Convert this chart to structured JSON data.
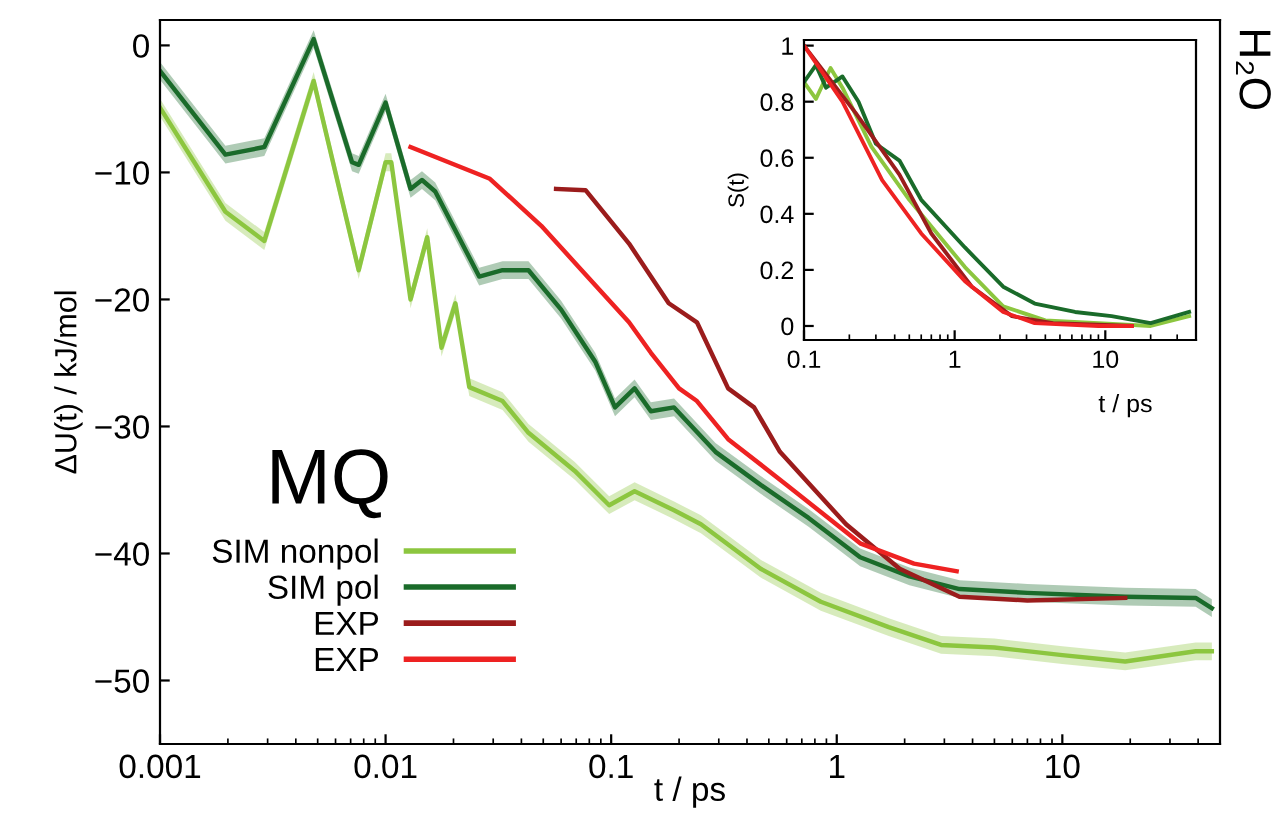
{
  "chart_data": [
    {
      "type": "line",
      "xlabel": "t / ps",
      "ylabel": "ΔU(t) / kJ/mol",
      "log": "x",
      "xlim": [
        0.001,
        50
      ],
      "ylim": [
        -55,
        2
      ],
      "xticks": [
        0.001,
        0.01,
        0.1,
        1,
        10
      ],
      "yticks": [
        {
          "value": -50,
          "label": "−50"
        },
        {
          "value": -40,
          "label": "−40"
        },
        {
          "value": -30,
          "label": "−30"
        },
        {
          "value": -20,
          "label": "−20"
        },
        {
          "value": -10,
          "label": "−10"
        },
        0
      ],
      "grid": false,
      "legend": "bottom left",
      "annotations": [
        "MQ",
        "H₂O"
      ],
      "series": [
        {
          "name": "SIM nonpol",
          "color": "#8cc63f",
          "x": [
            0.001,
            0.00195,
            0.0029,
            0.0048,
            0.0076,
            0.01,
            0.0106,
            0.0129,
            0.0153,
            0.0177,
            0.0204,
            0.0235,
            0.033,
            0.043,
            0.069,
            0.098,
            0.127,
            0.19,
            0.25,
            0.46,
            0.85,
            1.7,
            2.9,
            5,
            10,
            19,
            39,
            46
          ],
          "values": [
            -4.9,
            -13.1,
            -15.4,
            -2.8,
            -17.7,
            -9.2,
            -9.2,
            -20,
            -15.1,
            -23.8,
            -20.3,
            -26.9,
            -28,
            -30.5,
            -33.5,
            -36.2,
            -35.1,
            -36.6,
            -37.7,
            -41.2,
            -43.8,
            -45.8,
            -47.2,
            -47.4,
            -48,
            -48.5,
            -47.7,
            -47.7
          ],
          "lower": [
            -5.6,
            -13.8,
            -16.1,
            -3.5,
            -18.4,
            -9.9,
            -9.9,
            -20.7,
            -15.8,
            -24.5,
            -21,
            -27.6,
            -28.7,
            -31.2,
            -34.2,
            -36.9,
            -35.8,
            -37.3,
            -38.4,
            -41.9,
            -44.5,
            -46.5,
            -47.9,
            -48.1,
            -48.7,
            -49.2,
            -48.4,
            -48.4
          ],
          "upper": [
            -4.2,
            -12.4,
            -14.7,
            -2.1,
            -17,
            -8.5,
            -8.5,
            -19.3,
            -14.4,
            -23.1,
            -19.6,
            -26.2,
            -27.3,
            -29.8,
            -32.8,
            -35.5,
            -34.4,
            -35.9,
            -37,
            -40.5,
            -43.1,
            -45.1,
            -46.5,
            -46.7,
            -47.3,
            -47.8,
            -47,
            -47
          ]
        },
        {
          "name": "SIM pol",
          "color": "#1a6b2a",
          "x": [
            0.001,
            0.00195,
            0.0029,
            0.0048,
            0.0071,
            0.0076,
            0.01,
            0.0129,
            0.0145,
            0.0166,
            0.026,
            0.033,
            0.043,
            0.06,
            0.085,
            0.104,
            0.127,
            0.15,
            0.19,
            0.29,
            0.46,
            0.75,
            1.27,
            2.1,
            3.5,
            7,
            19,
            39,
            46
          ],
          "values": [
            -2,
            -8.6,
            -8,
            0.5,
            -9.2,
            -9.4,
            -4.5,
            -11.3,
            -10.6,
            -11.5,
            -18.2,
            -17.7,
            -17.7,
            -20.8,
            -24.9,
            -28.5,
            -27,
            -28.8,
            -28.5,
            -32,
            -34.6,
            -37.2,
            -40.3,
            -41.8,
            -42.8,
            -43.1,
            -43.4,
            -43.5,
            -44.3
          ],
          "lower": [
            -2.7,
            -9.3,
            -8.7,
            -0.2,
            -9.9,
            -10.1,
            -5.2,
            -12,
            -11.3,
            -12.2,
            -18.9,
            -18.4,
            -18.4,
            -21.5,
            -25.6,
            -29.2,
            -27.7,
            -29.5,
            -29.2,
            -32.7,
            -35.3,
            -37.9,
            -41,
            -42.5,
            -43.5,
            -43.8,
            -44.1,
            -44.2,
            -45
          ],
          "upper": [
            -1.3,
            -7.9,
            -7.3,
            1.2,
            -8.5,
            -8.7,
            -3.8,
            -10.6,
            -9.9,
            -10.8,
            -17.5,
            -17,
            -17,
            -20.1,
            -24.2,
            -27.8,
            -26.3,
            -28.1,
            -27.8,
            -31.3,
            -33.9,
            -36.5,
            -39.6,
            -41.1,
            -42.1,
            -42.4,
            -42.7,
            -42.8,
            -43.6
          ]
        },
        {
          "name": "EXP",
          "color": "#9b1c1c",
          "x": [
            0.057,
            0.077,
            0.12,
            0.18,
            0.24,
            0.33,
            0.43,
            0.56,
            1.1,
            1.9,
            3.5,
            7,
            19
          ],
          "values": [
            -11.3,
            -11.4,
            -15.6,
            -20.3,
            -21.8,
            -27,
            -28.5,
            -32,
            -37.7,
            -41.2,
            -43.4,
            -43.7,
            -43.5
          ]
        },
        {
          "name": "EXP",
          "color": "#ee2222",
          "x": [
            0.0129,
            0.029,
            0.049,
            0.074,
            0.12,
            0.15,
            0.2,
            0.24,
            0.33,
            0.6,
            1.27,
            2.2,
            3.4
          ],
          "values": [
            -8,
            -10.5,
            -14.2,
            -17.7,
            -21.8,
            -24.2,
            -27,
            -28,
            -31,
            -34.6,
            -39.2,
            -40.8,
            -41.4
          ]
        }
      ]
    },
    {
      "type": "line",
      "xlabel": "t / ps",
      "ylabel": "S(t)",
      "log": "x",
      "xlim": [
        0.1,
        40
      ],
      "ylim": [
        -0.05,
        1.02
      ],
      "xticks": [
        0.1,
        1,
        10
      ],
      "yticks": [
        0,
        0.2,
        0.4,
        0.6,
        0.8,
        1
      ],
      "grid": false,
      "series": [
        {
          "color": "#8cc63f",
          "x": [
            0.1,
            0.12,
            0.15,
            0.18,
            0.28,
            0.5,
            1.17,
            2.1,
            4,
            9,
            20,
            36
          ],
          "values": [
            0.87,
            0.81,
            0.92,
            0.85,
            0.64,
            0.45,
            0.21,
            0.07,
            0.02,
            0.01,
            0,
            0.035
          ]
        },
        {
          "color": "#1a6b2a",
          "x": [
            0.1,
            0.12,
            0.14,
            0.18,
            0.23,
            0.3,
            0.43,
            0.6,
            1.17,
            2.1,
            3.4,
            6.3,
            11,
            20,
            36
          ],
          "values": [
            0.87,
            0.93,
            0.85,
            0.89,
            0.8,
            0.65,
            0.59,
            0.45,
            0.28,
            0.14,
            0.08,
            0.05,
            0.035,
            0.01,
            0.05
          ]
        },
        {
          "color": "#9b1c1c",
          "x": [
            0.1,
            0.22,
            0.43,
            0.7,
            1.3,
            2.4,
            4.5,
            15
          ],
          "values": [
            1,
            0.76,
            0.54,
            0.33,
            0.14,
            0.035,
            0.01,
            0
          ]
        },
        {
          "color": "#ee2222",
          "x": [
            0.1,
            0.18,
            0.33,
            0.6,
            1.17,
            2.1,
            3.4,
            9,
            15
          ],
          "values": [
            1,
            0.8,
            0.52,
            0.33,
            0.16,
            0.05,
            0.01,
            0,
            0
          ]
        }
      ]
    }
  ]
}
